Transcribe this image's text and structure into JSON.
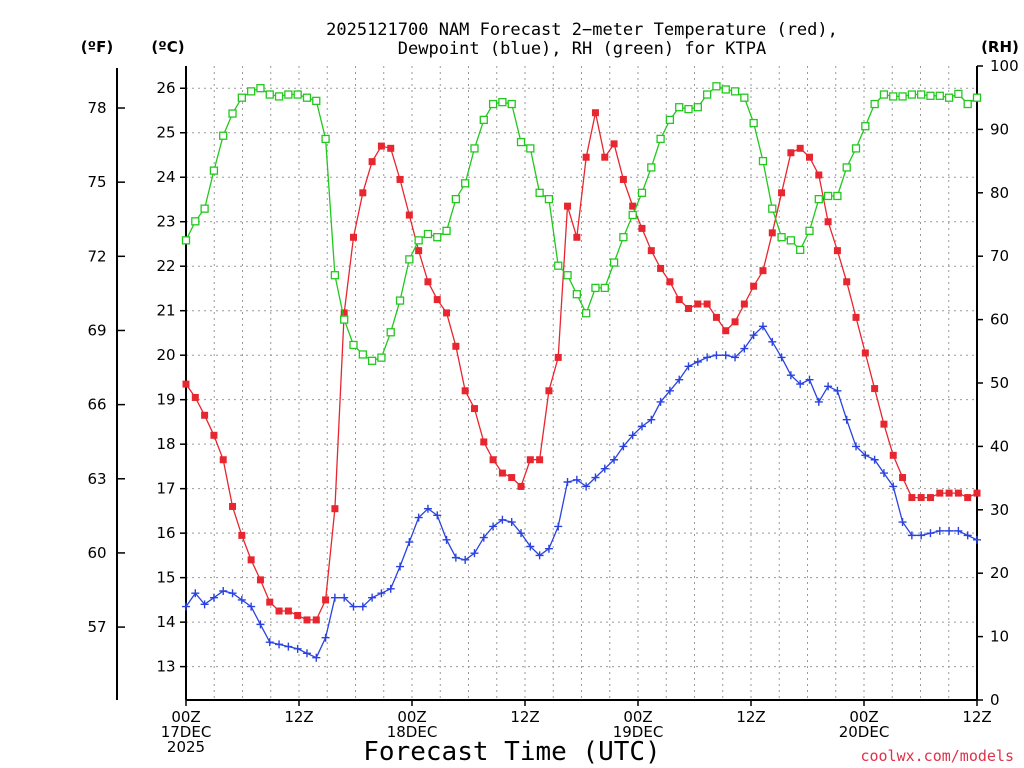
{
  "chart_data": {
    "type": "line",
    "title": "2025121700 NAM Forecast 2−meter Temperature (red),",
    "subtitle": "Dewpoint (blue), RH (green) for KTPA",
    "xlabel": "Forecast Time (UTC)",
    "credit": "coolwx.com/models",
    "unit_f": "(ºF)",
    "unit_c": "(ºC)",
    "unit_rh": "(RH)",
    "x_range_hours": [
      0,
      84
    ],
    "x_ticks": [
      {
        "h": 0,
        "l1": "00Z",
        "l2": "17DEC",
        "l3": "2025"
      },
      {
        "h": 12,
        "l1": "12Z",
        "l2": "",
        "l3": ""
      },
      {
        "h": 24,
        "l1": "00Z",
        "l2": "18DEC",
        "l3": ""
      },
      {
        "h": 36,
        "l1": "12Z",
        "l2": "",
        "l3": ""
      },
      {
        "h": 48,
        "l1": "00Z",
        "l2": "19DEC",
        "l3": ""
      },
      {
        "h": 60,
        "l1": "12Z",
        "l2": "",
        "l3": ""
      },
      {
        "h": 72,
        "l1": "00Z",
        "l2": "20DEC",
        "l3": ""
      },
      {
        "h": 84,
        "l1": "12Z",
        "l2": "",
        "l3": ""
      }
    ],
    "c_range": [
      12.25,
      26.5
    ],
    "c_ticks": [
      13,
      14,
      15,
      16,
      17,
      18,
      19,
      20,
      21,
      22,
      23,
      24,
      25,
      26
    ],
    "f_ticks": [
      57,
      60,
      63,
      66,
      69,
      72,
      75,
      78
    ],
    "rh_range": [
      0,
      100
    ],
    "rh_ticks": [
      0,
      10,
      20,
      30,
      40,
      50,
      60,
      70,
      80,
      90,
      100
    ],
    "series": [
      {
        "name": "2-meter Temperature",
        "units": "C",
        "color": "#e8262f",
        "marker": "filled-square",
        "values": [
          19.35,
          19.05,
          18.65,
          18.2,
          17.65,
          16.6,
          15.95,
          15.4,
          14.95,
          14.45,
          14.25,
          14.25,
          14.15,
          14.05,
          14.05,
          14.5,
          16.55,
          20.95,
          22.65,
          23.65,
          24.35,
          24.7,
          24.65,
          23.95,
          23.15,
          22.35,
          21.65,
          21.25,
          20.95,
          20.2,
          19.2,
          18.8,
          18.05,
          17.65,
          17.35,
          17.25,
          17.05,
          17.65,
          17.65,
          19.2,
          19.95,
          23.35,
          22.65,
          24.45,
          25.45,
          24.45,
          24.75,
          23.95,
          23.35,
          22.85,
          22.35,
          21.95,
          21.65,
          21.25,
          21.05,
          21.15,
          21.15,
          20.85,
          20.55,
          20.75,
          21.15,
          21.55,
          21.9,
          22.75,
          23.65,
          24.55,
          24.65,
          24.45,
          24.05,
          23.0,
          22.35,
          21.65,
          20.85,
          20.05,
          19.25,
          18.45,
          17.75,
          17.25,
          16.8,
          16.8,
          16.8,
          16.9,
          16.9,
          16.9,
          16.8,
          16.9
        ]
      },
      {
        "name": "Dewpoint",
        "units": "C",
        "color": "#2a43e0",
        "marker": "plus",
        "values": [
          14.35,
          14.65,
          14.4,
          14.55,
          14.7,
          14.65,
          14.5,
          14.35,
          13.95,
          13.55,
          13.5,
          13.45,
          13.4,
          13.3,
          13.2,
          13.65,
          14.55,
          14.55,
          14.35,
          14.35,
          14.55,
          14.65,
          14.75,
          15.25,
          15.8,
          16.35,
          16.55,
          16.4,
          15.85,
          15.45,
          15.4,
          15.55,
          15.9,
          16.15,
          16.3,
          16.25,
          16.0,
          15.7,
          15.5,
          15.65,
          16.15,
          17.15,
          17.2,
          17.05,
          17.25,
          17.45,
          17.65,
          17.95,
          18.2,
          18.4,
          18.55,
          18.95,
          19.2,
          19.45,
          19.75,
          19.85,
          19.95,
          20.0,
          20.0,
          19.95,
          20.15,
          20.45,
          20.65,
          20.3,
          19.95,
          19.55,
          19.35,
          19.45,
          18.95,
          19.3,
          19.2,
          18.55,
          17.95,
          17.75,
          17.65,
          17.35,
          17.05,
          16.25,
          15.95,
          15.95,
          16.0,
          16.05,
          16.05,
          16.05,
          15.95,
          15.85
        ]
      },
      {
        "name": "RH",
        "units": "%",
        "color": "#22c81e",
        "marker": "open-square",
        "values": [
          72.5,
          75.5,
          77.5,
          83.5,
          89.0,
          92.5,
          95.0,
          96.0,
          96.5,
          95.5,
          95.2,
          95.5,
          95.5,
          95.0,
          94.5,
          88.5,
          67.0,
          60.0,
          56.0,
          54.5,
          53.5,
          54.0,
          58.0,
          63.0,
          69.5,
          72.5,
          73.5,
          73.0,
          74.0,
          79.0,
          81.5,
          87.0,
          91.5,
          94.0,
          94.3,
          94.0,
          88.0,
          87.0,
          80.0,
          79.0,
          68.5,
          67.0,
          64.0,
          61.0,
          65.0,
          65.0,
          69.0,
          73.0,
          76.5,
          80.0,
          84.0,
          88.5,
          91.5,
          93.5,
          93.2,
          93.5,
          95.5,
          96.8,
          96.3,
          96.0,
          95.0,
          91.0,
          85.0,
          77.5,
          73.0,
          72.5,
          71.0,
          74.0,
          79.0,
          79.5,
          79.5,
          84.0,
          87.0,
          90.5,
          94.0,
          95.5,
          95.2,
          95.2,
          95.5,
          95.5,
          95.3,
          95.3,
          95.0,
          95.6,
          94.0,
          95.0
        ]
      }
    ]
  }
}
